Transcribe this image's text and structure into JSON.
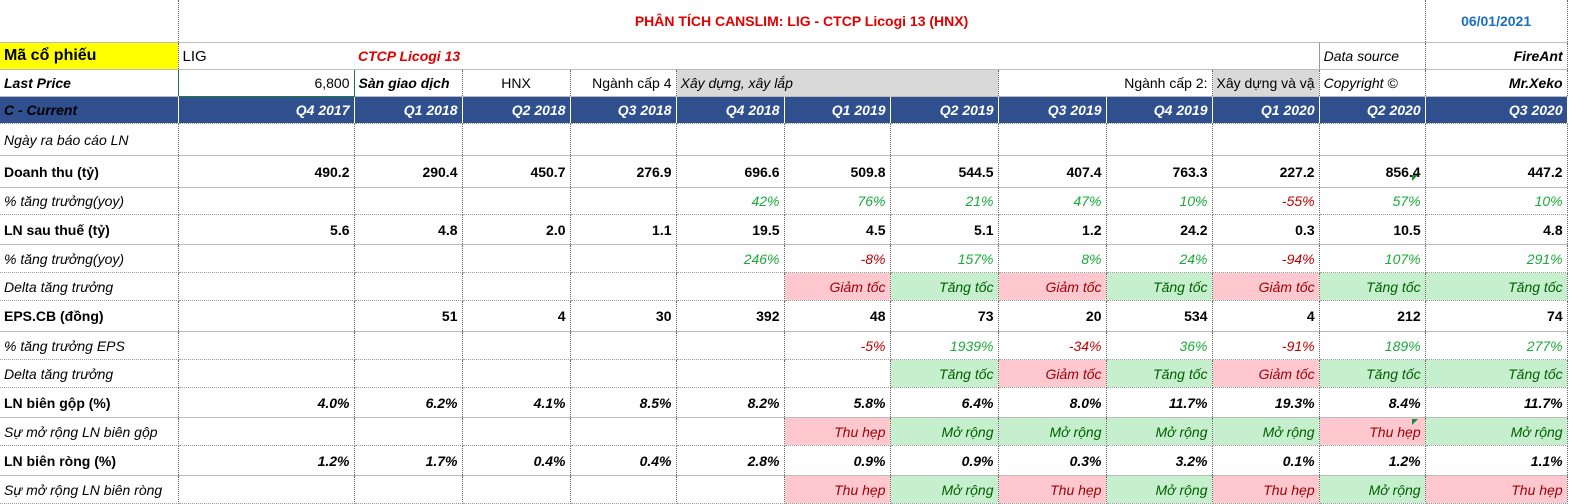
{
  "title": "PHÂN TÍCH CANSLIM: LIG - CTCP Licogi 13 (HNX)",
  "date": "06/01/2021",
  "ticker_label": "Mã cổ phiếu",
  "ticker": "LIG",
  "company": "CTCP Licogi 13",
  "data_source_label": "Data source",
  "data_source": "FireAnt",
  "last_price_label": "Last Price",
  "last_price": "6,800",
  "exchange_label": "Sàn giao dịch",
  "exchange": "HNX",
  "sector4_label": "Ngành cấp 4",
  "sector4": "Xây dựng, xây lắp",
  "sector2_label": "Ngành cấp 2:",
  "sector2": "Xây dựng và vậ",
  "copyright_label": "Copyright ©",
  "copyright": "Mr.Xeko",
  "section_label": "C - Current",
  "quarters": [
    "Q4 2017",
    "Q1 2018",
    "Q2 2018",
    "Q3 2018",
    "Q4 2018",
    "Q1 2019",
    "Q2 2019",
    "Q3 2019",
    "Q4 2019",
    "Q1 2020",
    "Q2 2020",
    "Q3 2020"
  ],
  "rows": {
    "report_date": {
      "label": "Ngày ra báo cáo LN"
    },
    "revenue": {
      "label": "Doanh thu (tỷ)",
      "values": [
        "490.2",
        "290.4",
        "450.7",
        "276.9",
        "696.6",
        "509.8",
        "544.5",
        "407.4",
        "763.3",
        "227.2",
        "856.4",
        "447.2"
      ]
    },
    "revenue_growth": {
      "label": "% tăng trưởng(yoy)",
      "values": [
        "",
        "",
        "",
        "",
        "42%",
        "76%",
        "21%",
        "47%",
        "10%",
        "-55%",
        "57%",
        "10%"
      ]
    },
    "profit": {
      "label": "LN sau thuế (tỷ)",
      "values": [
        "5.6",
        "4.8",
        "2.0",
        "1.1",
        "19.5",
        "4.5",
        "5.1",
        "1.2",
        "24.2",
        "0.3",
        "10.5",
        "4.8"
      ]
    },
    "profit_growth": {
      "label": "% tăng trưởng(yoy)",
      "values": [
        "",
        "",
        "",
        "",
        "246%",
        "-8%",
        "157%",
        "8%",
        "24%",
        "-94%",
        "107%",
        "291%"
      ]
    },
    "profit_delta": {
      "label": "Delta tăng trưởng",
      "values": [
        "",
        "",
        "",
        "",
        "",
        "Giảm tốc",
        "Tăng tốc",
        "Giảm tốc",
        "Tăng tốc",
        "Giảm tốc",
        "Tăng tốc",
        "Tăng tốc"
      ]
    },
    "eps": {
      "label": "EPS.CB (đồng)",
      "values": [
        "",
        "51",
        "4",
        "30",
        "392",
        "48",
        "73",
        "20",
        "534",
        "4",
        "212",
        "74"
      ]
    },
    "eps_growth": {
      "label": "% tăng trưởng EPS",
      "values": [
        "",
        "",
        "",
        "",
        "",
        "-5%",
        "1939%",
        "-34%",
        "36%",
        "-91%",
        "189%",
        "277%"
      ]
    },
    "eps_delta": {
      "label": "Delta tăng trưởng",
      "values": [
        "",
        "",
        "",
        "",
        "",
        "",
        "Tăng tốc",
        "Giảm tốc",
        "Tăng tốc",
        "Giảm tốc",
        "Tăng tốc",
        "Tăng tốc"
      ]
    },
    "gross_margin": {
      "label": "LN biên gộp (%)",
      "values": [
        "4.0%",
        "6.2%",
        "4.1%",
        "8.5%",
        "8.2%",
        "5.8%",
        "6.4%",
        "8.0%",
        "11.7%",
        "19.3%",
        "8.4%",
        "11.7%"
      ]
    },
    "gross_margin_exp": {
      "label": "Sự mở rộng LN biên gộp",
      "values": [
        "",
        "",
        "",
        "",
        "",
        "Thu hẹp",
        "Mở rộng",
        "Mở rộng",
        "Mở rộng",
        "Mở rộng",
        "Thu hẹp",
        "Mở rộng"
      ]
    },
    "net_margin": {
      "label": "LN biên ròng (%)",
      "values": [
        "1.2%",
        "1.7%",
        "0.4%",
        "0.4%",
        "2.8%",
        "0.9%",
        "0.9%",
        "0.3%",
        "3.2%",
        "0.1%",
        "1.2%",
        "1.1%"
      ]
    },
    "net_margin_exp": {
      "label": "Sự mở rộng LN biên ròng",
      "values": [
        "",
        "",
        "",
        "",
        "",
        "Thu hẹp",
        "Mở rộng",
        "Thu hẹp",
        "Mở rộng",
        "Thu hẹp",
        "Mở rộng",
        "Thu hẹp"
      ]
    }
  },
  "colors": {
    "header_bg": "#2f4f8f",
    "positive": "#1aaa3a",
    "negative": "#c00000",
    "accelerate_bg": "#c6efce",
    "decelerate_bg": "#ffc7ce"
  }
}
